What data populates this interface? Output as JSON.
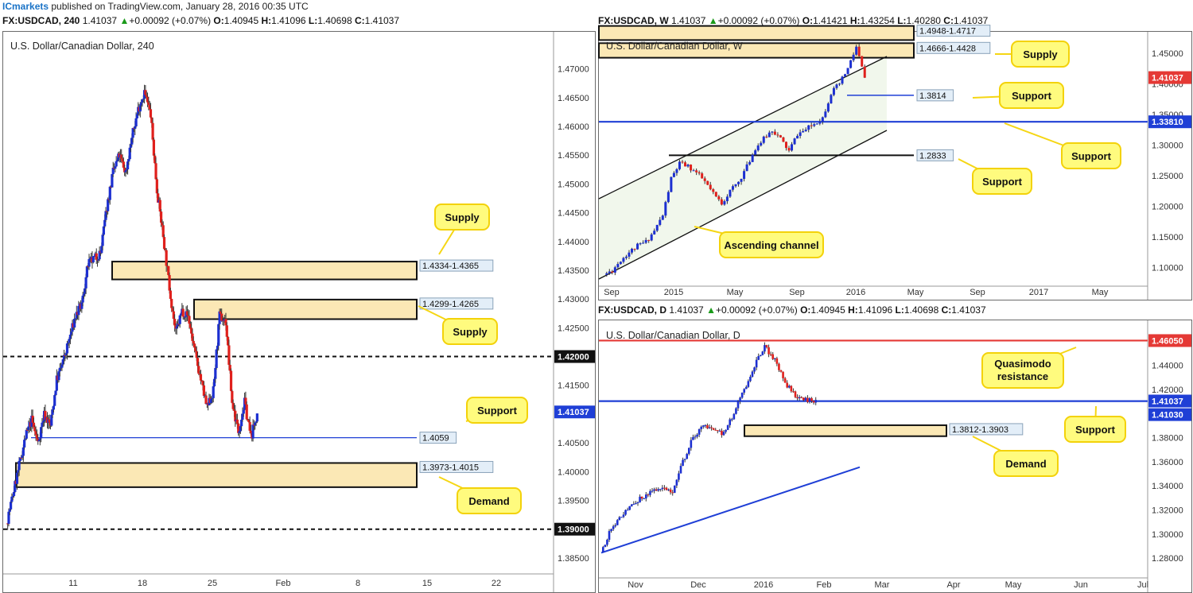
{
  "publisher": {
    "brand": "ICmarkets",
    "text": "published on TradingView.com, January 28, 2016 00:35 UTC"
  },
  "panels": [
    {
      "id": "h4",
      "header": {
        "symbol": "FX:USDCAD, 240",
        "last": "1.41037",
        "change": "+0.00092 (+0.07%)",
        "o": "1.40945",
        "h": "1.41096",
        "l": "1.40698",
        "c": "1.41037"
      },
      "title": "U.S. Dollar/Canadian Dollar, 240"
    },
    {
      "id": "weekly",
      "header": {
        "symbol": "FX:USDCAD, W",
        "last": "1.41037",
        "change": "+0.00092 (+0.07%)",
        "o": "1.41421",
        "h": "1.43254",
        "l": "1.40280",
        "c": "1.41037"
      },
      "title": "U.S. Dollar/Canadian Dollar, W"
    },
    {
      "id": "daily",
      "header": {
        "symbol": "FX:USDCAD, D",
        "last": "1.41037",
        "change": "+0.00092 (+0.07%)",
        "o": "1.40945",
        "h": "1.41096",
        "l": "1.40698",
        "c": "1.41037"
      },
      "title": "U.S. Dollar/Canadian Dollar, D"
    }
  ],
  "chart_data": [
    {
      "type": "candlestick",
      "title": "U.S. Dollar/Canadian Dollar, 240",
      "ylim": [
        1.3825,
        1.4745
      ],
      "y_ticks": [
        "1.47000",
        "1.46500",
        "1.46000",
        "1.45500",
        "1.45000",
        "1.44500",
        "1.44000",
        "1.43500",
        "1.43000",
        "1.42500",
        "1.42000",
        "1.41500",
        "1.41000",
        "1.40500",
        "1.40000",
        "1.39500",
        "1.39000",
        "1.38500"
      ],
      "x_ticks": [
        "11",
        "18",
        "25",
        "Feb",
        "8",
        "15",
        "22"
      ],
      "last_price": "1.41037",
      "levels": [
        {
          "label": "1.42000",
          "value": 1.42,
          "style": "dashed"
        },
        {
          "label": "1.39000",
          "value": 1.39,
          "style": "dashed"
        },
        {
          "label": "1.4059",
          "value": 1.4059,
          "style": "support",
          "color": "#1f3fd6"
        }
      ],
      "zones": [
        {
          "label": "1.4334-1.4365",
          "low": 1.4334,
          "high": 1.4365
        },
        {
          "label": "1.4299-1.4265",
          "low": 1.4265,
          "high": 1.4299
        },
        {
          "label": "1.3973-1.4015",
          "low": 1.3973,
          "high": 1.4015
        }
      ],
      "callouts": [
        "Supply",
        "Supply",
        "Support",
        "Demand"
      ],
      "close_path": [
        1.391,
        1.396,
        1.401,
        1.406,
        1.409,
        1.405,
        1.41,
        1.408,
        1.416,
        1.419,
        1.423,
        1.427,
        1.429,
        1.436,
        1.437,
        1.438,
        1.446,
        1.452,
        1.455,
        1.452,
        1.458,
        1.463,
        1.466,
        1.462,
        1.449,
        1.441,
        1.432,
        1.424,
        1.428,
        1.427,
        1.421,
        1.416,
        1.411,
        1.414,
        1.427,
        1.426,
        1.412,
        1.407,
        1.412,
        1.406,
        1.41
      ]
    },
    {
      "type": "candlestick",
      "title": "U.S. Dollar/Canadian Dollar, W",
      "ylim": [
        1.072,
        1.48
      ],
      "y_ticks": [
        "1.45000",
        "1.40000",
        "1.35000",
        "1.30000",
        "1.25000",
        "1.20000",
        "1.15000",
        "1.10000"
      ],
      "x_ticks": [
        "Sep",
        "2015",
        "May",
        "Sep",
        "2016",
        "May",
        "Sep",
        "2017",
        "May"
      ],
      "last_price": "1.41037",
      "levels": [
        {
          "label": "1.3814",
          "value": 1.3814,
          "color": "#1f3fd6"
        },
        {
          "label": "1.33810",
          "value": 1.3381,
          "color": "#1f3fd6"
        },
        {
          "label": "1.2833",
          "value": 1.2833,
          "color": "#000000"
        }
      ],
      "zones": [
        {
          "label": "1.4948-1.4717",
          "low": 1.4717,
          "high": 1.4948
        },
        {
          "label": "1.4666-1.4428",
          "low": 1.4428,
          "high": 1.4666
        }
      ],
      "callouts": [
        "Supply",
        "Support",
        "Support",
        "Support",
        "Ascending channel"
      ],
      "close_path": [
        1.088,
        1.095,
        1.112,
        1.125,
        1.135,
        1.142,
        1.16,
        1.185,
        1.245,
        1.27,
        1.265,
        1.255,
        1.24,
        1.22,
        1.205,
        1.225,
        1.24,
        1.265,
        1.295,
        1.31,
        1.325,
        1.31,
        1.29,
        1.318,
        1.325,
        1.335,
        1.345,
        1.385,
        1.4,
        1.425,
        1.46,
        1.41
      ]
    },
    {
      "type": "candlestick",
      "title": "U.S. Dollar/Canadian Dollar, D",
      "ylim": [
        1.265,
        1.472
      ],
      "y_ticks": [
        "1.44000",
        "1.42000",
        "1.40000",
        "1.38000",
        "1.36000",
        "1.34000",
        "1.32000",
        "1.30000",
        "1.28000"
      ],
      "x_ticks": [
        "Nov",
        "Dec",
        "2016",
        "Feb",
        "Mar",
        "Apr",
        "May",
        "Jun",
        "Jul"
      ],
      "last_price": "1.41037",
      "levels": [
        {
          "label": "1.46050",
          "value": 1.4605,
          "color": "#e53935"
        },
        {
          "label": "1.41030",
          "value": 1.4103,
          "color": "#1f3fd6"
        }
      ],
      "zones": [
        {
          "label": "1.3812-1.3903",
          "low": 1.3812,
          "high": 1.3903
        }
      ],
      "callouts": [
        "Quasimodo resistance",
        "Support",
        "Demand"
      ],
      "close_path": [
        1.285,
        1.305,
        1.315,
        1.325,
        1.33,
        1.335,
        1.34,
        1.335,
        1.36,
        1.38,
        1.39,
        1.386,
        1.383,
        1.4,
        1.42,
        1.44,
        1.455,
        1.445,
        1.425,
        1.415,
        1.412,
        1.41
      ]
    }
  ]
}
